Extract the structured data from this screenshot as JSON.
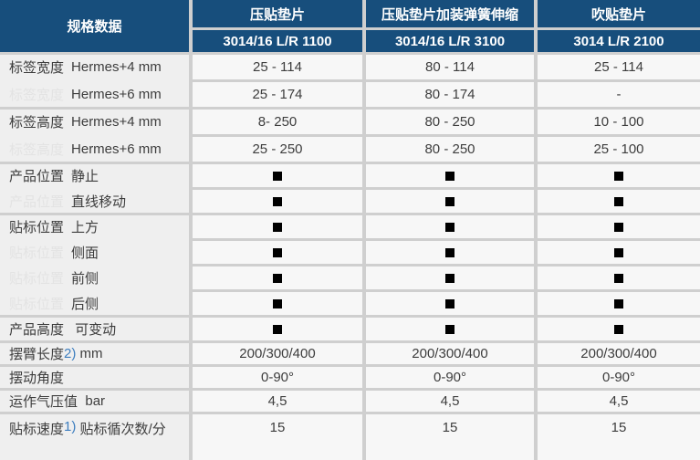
{
  "colors": {
    "header_bg": "#174e7c",
    "header_text": "#ffffff",
    "label_column_bg": "#efefef",
    "data_cell_bg": "#f7f7f7",
    "separator": "#cfcfcf",
    "body_text": "#3d3d3d",
    "ghost_text": "#e3e3e3",
    "footnote_marker": "#3d7ebf"
  },
  "icons": {
    "presence_marker": "black-square-icon"
  },
  "header": {
    "spec_label": "规格数据",
    "columns": [
      {
        "title": "压贴垫片",
        "model": "3014/16 L/R 1100"
      },
      {
        "title": "压贴垫片加装弹簧伸缩",
        "model": "3014/16 L/R 3100"
      },
      {
        "title": "吹贴垫片",
        "model": "3014 L/R 2100"
      }
    ]
  },
  "groups": [
    {
      "prefix": "标签宽度",
      "rows": [
        {
          "label": "Hermes+4 mm",
          "values": [
            "25 - 114",
            "80 - 114",
            "25 - 114"
          ]
        },
        {
          "label": "Hermes+6 mm",
          "values": [
            "25 - 174",
            "80 - 174",
            "-"
          ]
        }
      ]
    },
    {
      "prefix": "标签高度",
      "rows": [
        {
          "label": "Hermes+4 mm",
          "values": [
            "8- 250",
            "80 - 250",
            "10 - 100"
          ]
        },
        {
          "label": "Hermes+6 mm",
          "values": [
            "25 - 250",
            "80 - 250",
            "25 - 100"
          ]
        }
      ]
    },
    {
      "prefix": "产品位置",
      "rows": [
        {
          "label": "静止",
          "values": [
            "■",
            "■",
            "■"
          ]
        },
        {
          "label": "直线移动",
          "values": [
            "■",
            "■",
            "■"
          ]
        }
      ]
    },
    {
      "prefix": "贴标位置",
      "rows": [
        {
          "label": "上方",
          "values": [
            "■",
            "■",
            "■"
          ]
        },
        {
          "label": "侧面",
          "values": [
            "■",
            "■",
            "■"
          ]
        },
        {
          "label": "前侧",
          "values": [
            "■",
            "■",
            "■"
          ]
        },
        {
          "label": "后侧",
          "values": [
            "■",
            "■",
            "■"
          ]
        }
      ]
    },
    {
      "prefix": "产品高度",
      "rows": [
        {
          "label": " 可变动",
          "values": [
            "■",
            "■",
            "■"
          ]
        }
      ]
    },
    {
      "prefix": "摆臂长度",
      "marker": "2)",
      "suffix": " mm",
      "rows": [
        {
          "label": "",
          "values": [
            "200/300/400",
            "200/300/400",
            "200/300/400"
          ]
        }
      ]
    },
    {
      "prefix": "摆动角度",
      "rows": [
        {
          "label": "",
          "values": [
            "0-90°",
            "0-90°",
            "0-90°"
          ]
        }
      ]
    },
    {
      "prefix": "运作气压值",
      "suffix": "  bar",
      "rows": [
        {
          "label": "",
          "values": [
            "4,5",
            "4,5",
            "4,5"
          ]
        }
      ]
    },
    {
      "prefix": "贴标速度",
      "marker": "1)",
      "suffix": " 贴标循次数/分",
      "rows": [
        {
          "label": "",
          "values": [
            "15",
            "15",
            "15"
          ]
        }
      ]
    }
  ]
}
